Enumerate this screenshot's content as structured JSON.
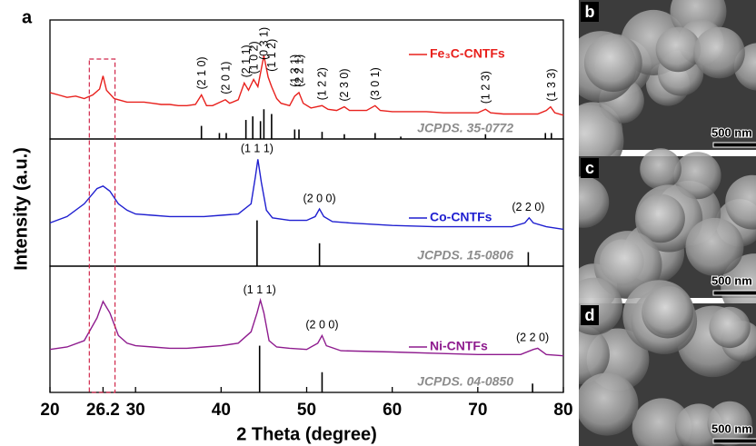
{
  "figure_label": "a",
  "y_label": "Intensity (a.u.)",
  "images": [
    {
      "label": "b",
      "scale_bar": "500 nm"
    },
    {
      "label": "c",
      "scale_bar": "500 nm"
    },
    {
      "label": "d",
      "scale_bar": "500 nm"
    }
  ],
  "chart_data": [
    {
      "type": "line",
      "x": [
        20,
        21,
        22,
        23,
        24,
        25,
        25.8,
        26.2,
        26.6,
        27.5,
        28,
        29,
        30,
        31,
        32,
        33,
        34,
        35,
        36,
        37,
        37.7,
        38.3,
        39,
        39.9,
        40.5,
        41,
        42,
        42.7,
        43.2,
        43.8,
        44.3,
        45.0,
        45.5,
        45.9,
        46.5,
        47,
        48,
        48.6,
        49.1,
        49.6,
        50.5,
        51.8,
        52.5,
        53.5,
        54.4,
        55,
        56,
        57,
        58,
        58.6,
        60,
        62,
        64,
        66,
        68,
        70,
        70.9,
        71.5,
        73,
        75,
        77,
        78,
        78.5,
        79,
        80
      ],
      "series": [
        {
          "name": "Fe₃C-CNTFs",
          "color": "#e8201c",
          "values": [
            39,
            37,
            35,
            36,
            34,
            37,
            42,
            53,
            41,
            34,
            33,
            31,
            31,
            31,
            30,
            29,
            29,
            28,
            28,
            29,
            37,
            28,
            28,
            31,
            33,
            30,
            33,
            47,
            41,
            50,
            44,
            70,
            52,
            44,
            34,
            30,
            28,
            36,
            39,
            30,
            26,
            28,
            25,
            24,
            27,
            24,
            24,
            24,
            28,
            24,
            23,
            23,
            23,
            22,
            22,
            22,
            25,
            22,
            21,
            21,
            21,
            24,
            27,
            22,
            20
          ]
        }
      ],
      "xlim": [
        20,
        80
      ],
      "ylim": [
        0,
        100
      ],
      "reference": {
        "label": "JCPDS. 35-0772",
        "x": [
          37.7,
          39.8,
          40.6,
          42.9,
          43.7,
          44.6,
          45.0,
          45.9,
          48.6,
          49.1,
          51.8,
          54.4,
          58.0,
          61.0,
          70.9,
          77.9,
          78.6
        ],
        "values": [
          11,
          5,
          5,
          16,
          19,
          15,
          25,
          21,
          8,
          8,
          6,
          4,
          5,
          2,
          4,
          5,
          5
        ]
      },
      "annotations": [
        {
          "text": "(2 1 0)",
          "x": 37.7
        },
        {
          "text": "(2 0 1)",
          "x": 40.5
        },
        {
          "text": "(2 1 1)",
          "x": 42.9
        },
        {
          "text": "(1 0 2)",
          "x": 43.8
        },
        {
          "text": "(0 3 1)",
          "x": 45.0
        },
        {
          "text": "(1 1 2)",
          "x": 45.9
        },
        {
          "text": "(1 3 1)",
          "x": 48.6
        },
        {
          "text": "(2 2 1)",
          "x": 49.1
        },
        {
          "text": "(1 2 2)",
          "x": 51.8
        },
        {
          "text": "(2 3 0)",
          "x": 54.4
        },
        {
          "text": "(3 0 1)",
          "x": 58.0
        },
        {
          "text": "(1 2 3)",
          "x": 70.9
        },
        {
          "text": "(1 3 3)",
          "x": 78.6
        }
      ],
      "annotation_rotated": true
    },
    {
      "type": "line",
      "x": [
        20,
        22,
        24,
        25.5,
        26.2,
        27,
        28,
        29,
        30,
        32,
        34,
        36,
        38,
        40,
        42,
        43.5,
        44.0,
        44.3,
        44.7,
        45.3,
        46,
        48,
        50,
        51,
        51.5,
        52,
        53,
        55,
        60,
        65,
        70,
        74,
        75.5,
        76,
        76.5,
        78,
        80
      ],
      "series": [
        {
          "name": "Co-CNTFs",
          "color": "#1f1fd0",
          "values": [
            34,
            39,
            49,
            61,
            63,
            59,
            49,
            44,
            41,
            40,
            39,
            39,
            39,
            40,
            41,
            49,
            70,
            84,
            66,
            44,
            38,
            36,
            36,
            39,
            45,
            39,
            35,
            34,
            32,
            31,
            31,
            31,
            34,
            38,
            34,
            31,
            29
          ]
        }
      ],
      "xlim": [
        20,
        80
      ],
      "ylim": [
        0,
        100
      ],
      "reference": {
        "label": "JCPDS. 15-0806",
        "x": [
          44.2,
          51.5,
          75.9
        ],
        "values": [
          36,
          18,
          11
        ]
      },
      "annotations": [
        {
          "text": "(1 1 1)",
          "x": 44.2
        },
        {
          "text": "(2 0 0)",
          "x": 51.5
        },
        {
          "text": "(2 2 0)",
          "x": 75.9
        }
      ],
      "annotation_rotated": false
    },
    {
      "type": "line",
      "x": [
        20,
        22,
        24,
        25.5,
        26.2,
        27,
        28,
        29,
        30,
        32,
        34,
        36,
        38,
        40,
        42,
        43.5,
        44.2,
        44.6,
        45,
        45.6,
        46.5,
        48,
        50,
        51.3,
        51.8,
        52.3,
        54,
        60,
        65,
        70,
        75,
        76.5,
        77,
        78,
        80
      ],
      "series": [
        {
          "name": "Ni-CNTFs",
          "color": "#8e1b8e",
          "values": [
            34,
            36,
            41,
            59,
            72,
            63,
            45,
            39,
            37,
            36,
            35,
            35,
            36,
            37,
            39,
            48,
            63,
            73,
            63,
            41,
            36,
            35,
            34,
            39,
            45,
            37,
            33,
            32,
            31,
            30,
            30,
            34,
            35,
            30,
            29
          ]
        }
      ],
      "xlim": [
        20,
        80
      ],
      "ylim": [
        0,
        100
      ],
      "xticks": [
        20,
        30,
        40,
        50,
        60,
        70,
        80
      ],
      "xlabel": "2 Theta (degree)",
      "highlight_x": 26.2,
      "highlight_range": [
        24.6,
        27.6
      ],
      "reference": {
        "label": "JCPDS. 04-0850",
        "x": [
          44.5,
          51.8,
          76.4
        ],
        "values": [
          37,
          16,
          7
        ]
      },
      "annotations": [
        {
          "text": "(1 1 1)",
          "x": 44.5
        },
        {
          "text": "(2 0 0)",
          "x": 51.8
        },
        {
          "text": "(2 2 0)",
          "x": 76.4
        }
      ],
      "annotation_rotated": false
    }
  ]
}
